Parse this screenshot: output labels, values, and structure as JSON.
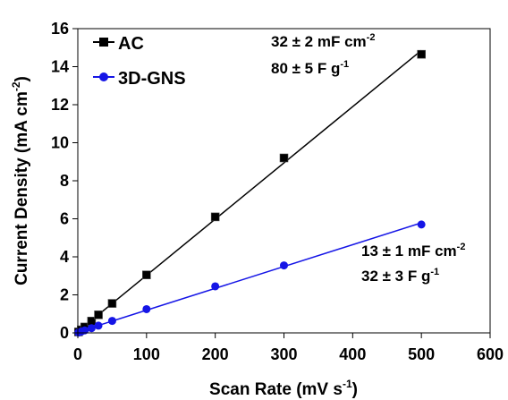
{
  "chart_data": {
    "type": "scatter",
    "xlabel_main": "Scan Rate (mV s",
    "xlabel_sup": "-1",
    "xlabel_end": ")",
    "ylabel_main": "Current Density (mA cm",
    "ylabel_sup": "-2",
    "ylabel_end": ")",
    "xlim": [
      0,
      600
    ],
    "ylim": [
      0,
      16
    ],
    "xticks": [
      "0",
      "100",
      "200",
      "300",
      "400",
      "500",
      "600"
    ],
    "yticks": [
      "0",
      "2",
      "4",
      "6",
      "8",
      "10",
      "12",
      "14",
      "16"
    ],
    "legend_position": "top-left",
    "series": [
      {
        "name": "AC",
        "color": "#000000",
        "marker": "square",
        "x": [
          1,
          5,
          10,
          20,
          30,
          50,
          100,
          200,
          300,
          500
        ],
        "y": [
          0.05,
          0.16,
          0.31,
          0.62,
          0.95,
          1.55,
          3.05,
          6.1,
          9.2,
          14.65
        ],
        "annotation": {
          "line1_main": "32 ± 2 mF cm",
          "line1_sup": "-2",
          "line2_main": "80 ± 5 F g",
          "line2_sup": "-1"
        }
      },
      {
        "name": "3D-GNS",
        "color": "#1515e6",
        "marker": "circle",
        "x": [
          1,
          5,
          10,
          20,
          30,
          50,
          100,
          200,
          300,
          500
        ],
        "y": [
          0.02,
          0.07,
          0.13,
          0.25,
          0.38,
          0.63,
          1.25,
          2.45,
          3.55,
          5.7
        ],
        "annotation": {
          "line1_main": "13 ± 1 mF cm",
          "line1_sup": "-2",
          "line2_main": "32 ± 3 F g",
          "line2_sup": "-1"
        }
      }
    ]
  }
}
